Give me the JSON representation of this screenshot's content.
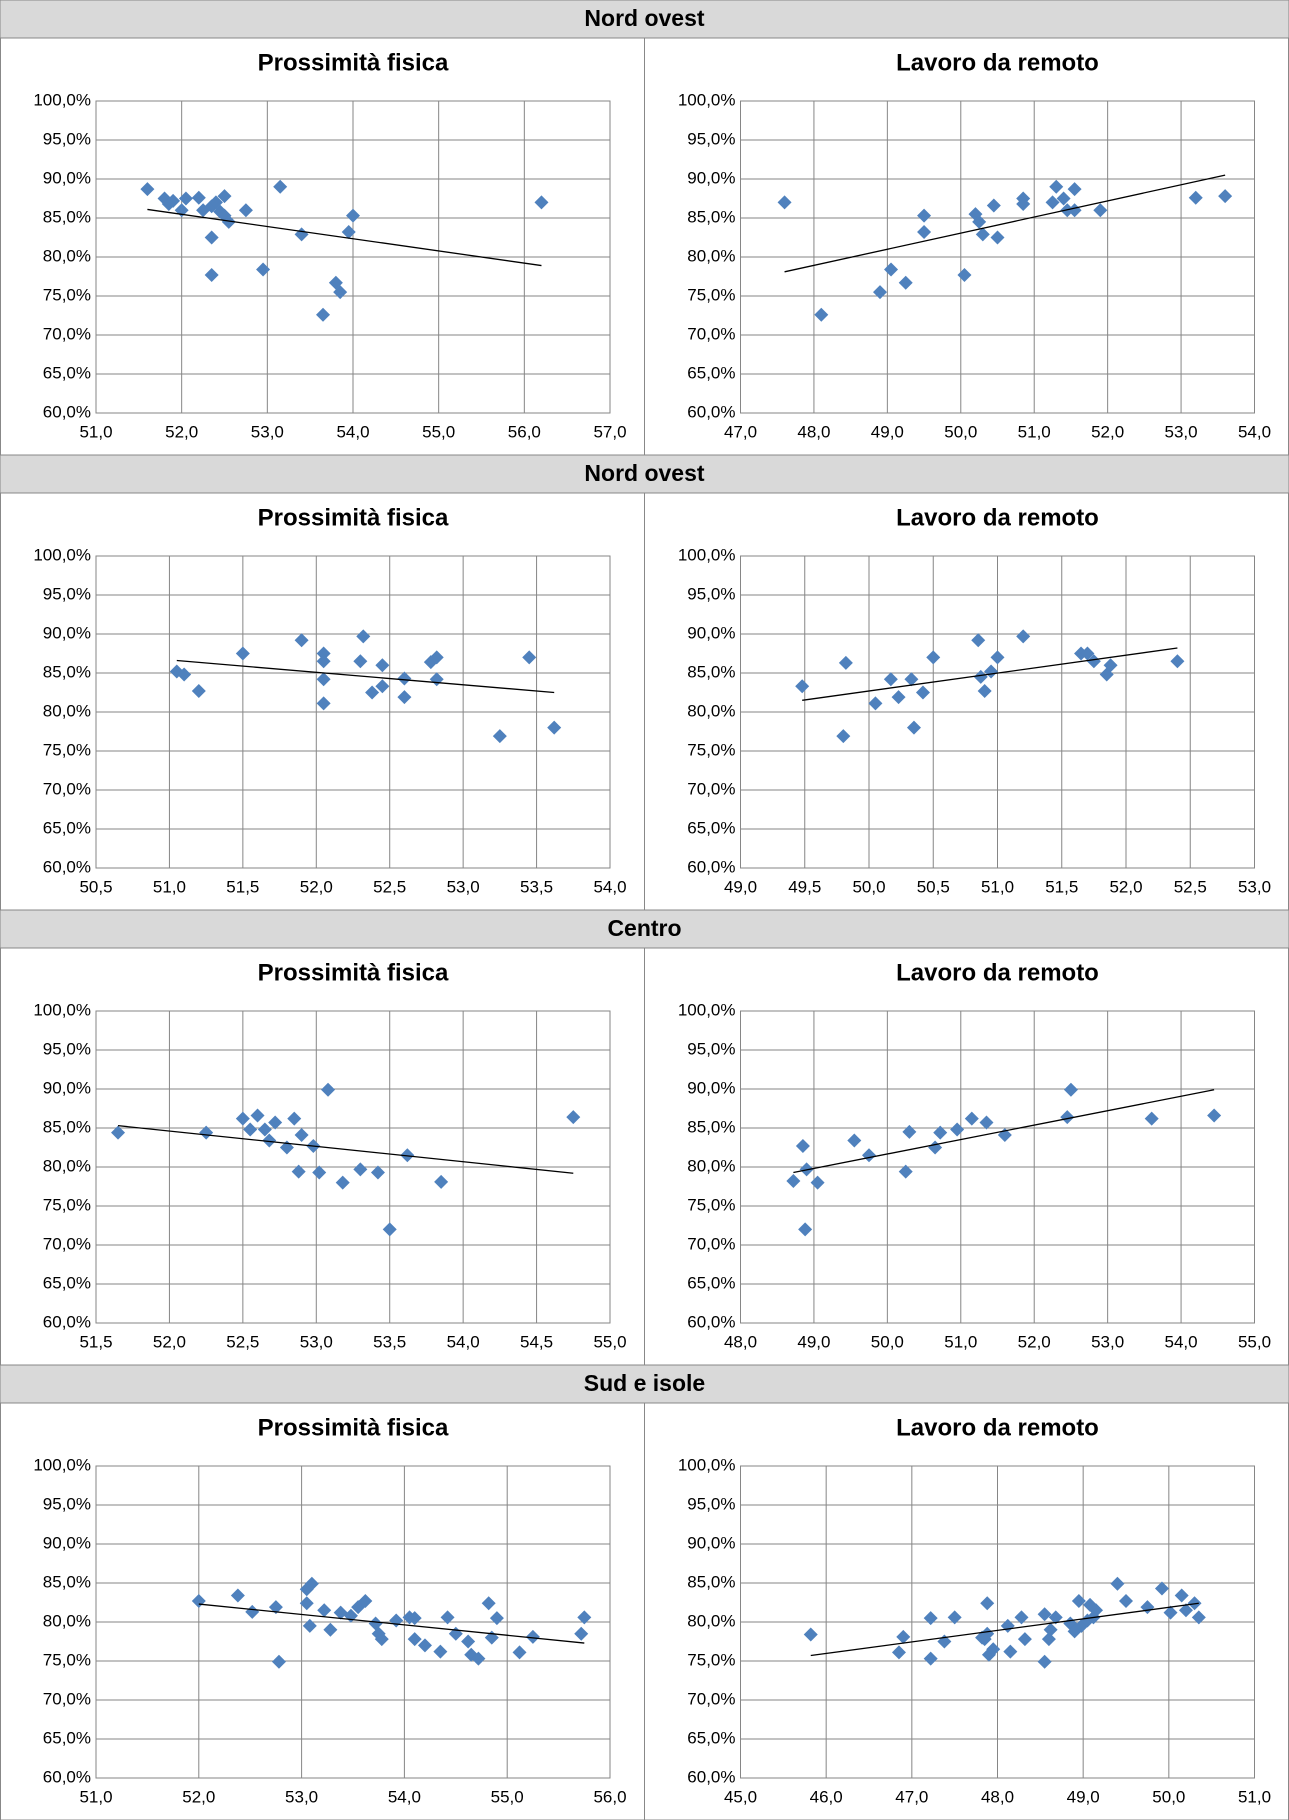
{
  "sections": [
    {
      "header": "Nord ovest"
    },
    {
      "header": "Nord ovest"
    },
    {
      "header": "Centro"
    },
    {
      "header": "Sud e isole"
    }
  ],
  "chart_data": [
    {
      "type": "scatter",
      "title": "Prossimità fisica",
      "color": "#4f81bd",
      "grid": true,
      "x": [
        51.6,
        51.8,
        51.85,
        51.9,
        52.0,
        52.05,
        52.2,
        52.25,
        52.35,
        52.4,
        52.45,
        52.5,
        52.5,
        52.55,
        52.35,
        52.35,
        52.75,
        52.95,
        53.15,
        53.4,
        53.65,
        53.8,
        53.85,
        53.95,
        54.0,
        56.2
      ],
      "y": [
        88.7,
        87.5,
        86.8,
        87.2,
        86.0,
        87.5,
        87.6,
        86.0,
        86.5,
        87.0,
        85.8,
        87.8,
        85.3,
        84.5,
        82.5,
        77.7,
        86.0,
        78.4,
        89.0,
        82.9,
        72.6,
        76.7,
        75.5,
        83.2,
        85.3,
        87.0
      ],
      "trendline": {
        "x": [
          51.6,
          56.2
        ],
        "y": [
          86.1,
          78.9
        ],
        "color": "#000000"
      },
      "xlim": [
        51,
        57
      ],
      "xticks": [
        {
          "value": 51,
          "label": "51,0"
        },
        {
          "value": 52,
          "label": "52,0"
        },
        {
          "value": 53,
          "label": "53,0"
        },
        {
          "value": 54,
          "label": "54,0"
        },
        {
          "value": 55,
          "label": "55,0"
        },
        {
          "value": 56,
          "label": "56,0"
        },
        {
          "value": 57,
          "label": "57,0"
        }
      ],
      "ylim": [
        60,
        100
      ],
      "yticks": [
        {
          "value": 60,
          "label": "60,0%"
        },
        {
          "value": 65,
          "label": "65,0%"
        },
        {
          "value": 70,
          "label": "70,0%"
        },
        {
          "value": 75,
          "label": "75,0%"
        },
        {
          "value": 80,
          "label": "80,0%"
        },
        {
          "value": 85,
          "label": "85,0%"
        },
        {
          "value": 90,
          "label": "90,0%"
        },
        {
          "value": 95,
          "label": "95,0%"
        },
        {
          "value": 100,
          "label": "100,0%"
        }
      ]
    },
    {
      "type": "scatter",
      "title": "Lavoro da remoto",
      "color": "#4f81bd",
      "grid": true,
      "x": [
        47.6,
        48.1,
        48.9,
        49.05,
        49.25,
        49.5,
        49.5,
        50.05,
        50.2,
        50.25,
        50.3,
        50.45,
        50.5,
        50.85,
        50.85,
        51.25,
        51.3,
        51.4,
        51.45,
        51.55,
        51.55,
        51.9,
        53.2,
        53.6
      ],
      "y": [
        87.0,
        72.6,
        75.5,
        78.4,
        76.7,
        83.2,
        85.3,
        77.7,
        85.5,
        84.5,
        82.9,
        86.6,
        82.5,
        86.8,
        87.5,
        87.0,
        89.0,
        87.5,
        86.0,
        86.0,
        88.7,
        86.0,
        87.6,
        87.8
      ],
      "trendline": {
        "x": [
          47.6,
          53.6
        ],
        "y": [
          78.1,
          90.5
        ],
        "color": "#000000"
      },
      "xlim": [
        47,
        54
      ],
      "xticks": [
        {
          "value": 47,
          "label": "47,0"
        },
        {
          "value": 48,
          "label": "48,0"
        },
        {
          "value": 49,
          "label": "49,0"
        },
        {
          "value": 50,
          "label": "50,0"
        },
        {
          "value": 51,
          "label": "51,0"
        },
        {
          "value": 52,
          "label": "52,0"
        },
        {
          "value": 53,
          "label": "53,0"
        },
        {
          "value": 54,
          "label": "54,0"
        }
      ],
      "ylim": [
        60,
        100
      ],
      "yticks": [
        {
          "value": 60,
          "label": "60,0%"
        },
        {
          "value": 65,
          "label": "65,0%"
        },
        {
          "value": 70,
          "label": "70,0%"
        },
        {
          "value": 75,
          "label": "75,0%"
        },
        {
          "value": 80,
          "label": "80,0%"
        },
        {
          "value": 85,
          "label": "85,0%"
        },
        {
          "value": 90,
          "label": "90,0%"
        },
        {
          "value": 95,
          "label": "95,0%"
        },
        {
          "value": 100,
          "label": "100,0%"
        }
      ]
    },
    {
      "type": "scatter",
      "title": "Prossimità fisica",
      "color": "#4f81bd",
      "grid": true,
      "x": [
        51.05,
        51.1,
        51.2,
        51.5,
        51.9,
        52.05,
        52.05,
        52.05,
        52.05,
        52.3,
        52.32,
        52.38,
        52.45,
        52.45,
        52.6,
        52.6,
        52.78,
        52.82,
        52.82,
        53.25,
        53.45,
        53.62
      ],
      "y": [
        85.2,
        84.8,
        82.7,
        87.5,
        89.2,
        87.5,
        86.5,
        84.2,
        81.1,
        86.5,
        89.7,
        82.5,
        83.3,
        86.0,
        84.3,
        81.9,
        86.4,
        87.0,
        84.2,
        76.9,
        87.0,
        78.0
      ],
      "trendline": {
        "x": [
          51.05,
          53.62
        ],
        "y": [
          86.6,
          82.5
        ],
        "color": "#000000"
      },
      "xlim": [
        50.5,
        54
      ],
      "xticks": [
        {
          "value": 50.5,
          "label": "50,5"
        },
        {
          "value": 51,
          "label": "51,0"
        },
        {
          "value": 51.5,
          "label": "51,5"
        },
        {
          "value": 52,
          "label": "52,0"
        },
        {
          "value": 52.5,
          "label": "52,5"
        },
        {
          "value": 53,
          "label": "53,0"
        },
        {
          "value": 53.5,
          "label": "53,5"
        },
        {
          "value": 54,
          "label": "54,0"
        }
      ],
      "ylim": [
        60,
        100
      ],
      "yticks": [
        {
          "value": 60,
          "label": "60,0%"
        },
        {
          "value": 65,
          "label": "65,0%"
        },
        {
          "value": 70,
          "label": "70,0%"
        },
        {
          "value": 75,
          "label": "75,0%"
        },
        {
          "value": 80,
          "label": "80,0%"
        },
        {
          "value": 85,
          "label": "85,0%"
        },
        {
          "value": 90,
          "label": "90,0%"
        },
        {
          "value": 95,
          "label": "95,0%"
        },
        {
          "value": 100,
          "label": "100,0%"
        }
      ]
    },
    {
      "type": "scatter",
      "title": "Lavoro da remoto",
      "color": "#4f81bd",
      "grid": true,
      "x": [
        49.48,
        49.82,
        49.8,
        50.05,
        50.17,
        50.23,
        50.33,
        50.35,
        50.42,
        50.5,
        50.85,
        50.87,
        50.9,
        50.95,
        51.0,
        51.2,
        51.65,
        51.7,
        51.75,
        51.85,
        51.88,
        52.4
      ],
      "y": [
        83.3,
        86.3,
        76.9,
        81.1,
        84.2,
        81.9,
        84.2,
        78.0,
        82.5,
        87.0,
        89.2,
        84.5,
        82.7,
        85.2,
        87.0,
        89.7,
        87.5,
        87.5,
        86.5,
        84.8,
        86.0,
        86.5
      ],
      "trendline": {
        "x": [
          49.48,
          52.4
        ],
        "y": [
          81.5,
          88.2
        ],
        "color": "#000000"
      },
      "xlim": [
        49,
        53
      ],
      "xticks": [
        {
          "value": 49,
          "label": "49,0"
        },
        {
          "value": 49.5,
          "label": "49,5"
        },
        {
          "value": 50,
          "label": "50,0"
        },
        {
          "value": 50.5,
          "label": "50,5"
        },
        {
          "value": 51,
          "label": "51,0"
        },
        {
          "value": 51.5,
          "label": "51,5"
        },
        {
          "value": 52,
          "label": "52,0"
        },
        {
          "value": 52.5,
          "label": "52,5"
        },
        {
          "value": 53,
          "label": "53,0"
        }
      ],
      "ylim": [
        60,
        100
      ],
      "yticks": [
        {
          "value": 60,
          "label": "60,0%"
        },
        {
          "value": 65,
          "label": "65,0%"
        },
        {
          "value": 70,
          "label": "70,0%"
        },
        {
          "value": 75,
          "label": "75,0%"
        },
        {
          "value": 80,
          "label": "80,0%"
        },
        {
          "value": 85,
          "label": "85,0%"
        },
        {
          "value": 90,
          "label": "90,0%"
        },
        {
          "value": 95,
          "label": "95,0%"
        },
        {
          "value": 100,
          "label": "100,0%"
        }
      ]
    },
    {
      "type": "scatter",
      "title": "Prossimità fisica",
      "color": "#4f81bd",
      "grid": true,
      "x": [
        51.65,
        52.25,
        52.5,
        52.55,
        52.6,
        52.65,
        52.68,
        52.72,
        52.8,
        52.85,
        52.9,
        52.88,
        52.98,
        53.02,
        53.08,
        53.18,
        53.3,
        53.42,
        53.5,
        53.62,
        53.85,
        54.75
      ],
      "y": [
        84.4,
        84.4,
        86.2,
        84.8,
        86.6,
        84.8,
        83.4,
        85.7,
        82.5,
        86.2,
        84.1,
        79.4,
        82.7,
        79.3,
        89.9,
        78.0,
        79.7,
        79.3,
        72.0,
        81.5,
        78.1,
        86.4
      ],
      "trendline": {
        "x": [
          51.65,
          54.75
        ],
        "y": [
          85.3,
          79.2
        ],
        "color": "#000000"
      },
      "xlim": [
        51.5,
        55
      ],
      "xticks": [
        {
          "value": 51.5,
          "label": "51,5"
        },
        {
          "value": 52,
          "label": "52,0"
        },
        {
          "value": 52.5,
          "label": "52,5"
        },
        {
          "value": 53,
          "label": "53,0"
        },
        {
          "value": 53.5,
          "label": "53,5"
        },
        {
          "value": 54,
          "label": "54,0"
        },
        {
          "value": 54.5,
          "label": "54,5"
        },
        {
          "value": 55,
          "label": "55,0"
        }
      ],
      "ylim": [
        60,
        100
      ],
      "yticks": [
        {
          "value": 60,
          "label": "60,0%"
        },
        {
          "value": 65,
          "label": "65,0%"
        },
        {
          "value": 70,
          "label": "70,0%"
        },
        {
          "value": 75,
          "label": "75,0%"
        },
        {
          "value": 80,
          "label": "80,0%"
        },
        {
          "value": 85,
          "label": "85,0%"
        },
        {
          "value": 90,
          "label": "90,0%"
        },
        {
          "value": 95,
          "label": "95,0%"
        },
        {
          "value": 100,
          "label": "100,0%"
        }
      ]
    },
    {
      "type": "scatter",
      "title": "Lavoro da remoto",
      "color": "#4f81bd",
      "grid": true,
      "x": [
        48.72,
        48.85,
        48.88,
        48.9,
        49.05,
        49.55,
        49.75,
        50.25,
        50.3,
        50.65,
        50.72,
        50.95,
        51.15,
        51.35,
        51.6,
        52.45,
        52.5,
        53.6,
        54.45
      ],
      "y": [
        78.2,
        82.7,
        72.0,
        79.7,
        78.0,
        83.4,
        81.5,
        79.4,
        84.5,
        82.5,
        84.4,
        84.8,
        86.2,
        85.7,
        84.1,
        86.4,
        89.9,
        86.2,
        86.6
      ],
      "trendline": {
        "x": [
          48.72,
          54.45
        ],
        "y": [
          79.3,
          89.9
        ],
        "color": "#000000"
      },
      "xlim": [
        48,
        55
      ],
      "xticks": [
        {
          "value": 48,
          "label": "48,0"
        },
        {
          "value": 49,
          "label": "49,0"
        },
        {
          "value": 50,
          "label": "50,0"
        },
        {
          "value": 51,
          "label": "51,0"
        },
        {
          "value": 52,
          "label": "52,0"
        },
        {
          "value": 53,
          "label": "53,0"
        },
        {
          "value": 54,
          "label": "54,0"
        },
        {
          "value": 55,
          "label": "55,0"
        }
      ],
      "ylim": [
        60,
        100
      ],
      "yticks": [
        {
          "value": 60,
          "label": "60,0%"
        },
        {
          "value": 65,
          "label": "65,0%"
        },
        {
          "value": 70,
          "label": "70,0%"
        },
        {
          "value": 75,
          "label": "75,0%"
        },
        {
          "value": 80,
          "label": "80,0%"
        },
        {
          "value": 85,
          "label": "85,0%"
        },
        {
          "value": 90,
          "label": "90,0%"
        },
        {
          "value": 95,
          "label": "95,0%"
        },
        {
          "value": 100,
          "label": "100,0%"
        }
      ]
    },
    {
      "type": "scatter",
      "title": "Prossimità fisica",
      "color": "#4f81bd",
      "grid": true,
      "x": [
        52.0,
        52.38,
        52.52,
        52.75,
        52.78,
        53.05,
        53.05,
        53.1,
        53.08,
        53.22,
        53.28,
        53.38,
        53.48,
        53.55,
        53.62,
        53.72,
        53.75,
        53.78,
        53.92,
        54.05,
        54.1,
        54.1,
        54.2,
        54.35,
        54.42,
        54.5,
        54.62,
        54.65,
        54.72,
        54.82,
        54.85,
        54.9,
        55.12,
        55.25,
        55.72,
        55.75
      ],
      "y": [
        82.7,
        83.4,
        81.3,
        81.9,
        74.9,
        82.4,
        84.2,
        84.9,
        79.5,
        81.5,
        79.0,
        81.2,
        80.8,
        81.9,
        82.7,
        79.8,
        78.5,
        77.8,
        80.2,
        80.6,
        80.5,
        77.8,
        77.0,
        76.2,
        80.6,
        78.5,
        77.5,
        75.8,
        75.3,
        82.4,
        78.0,
        80.5,
        76.1,
        78.1,
        78.5,
        80.6
      ],
      "trendline": {
        "x": [
          52.0,
          55.75
        ],
        "y": [
          82.3,
          77.3
        ],
        "color": "#000000"
      },
      "xlim": [
        51,
        56
      ],
      "xticks": [
        {
          "value": 51,
          "label": "51,0"
        },
        {
          "value": 52,
          "label": "52,0"
        },
        {
          "value": 53,
          "label": "53,0"
        },
        {
          "value": 54,
          "label": "54,0"
        },
        {
          "value": 55,
          "label": "55,0"
        },
        {
          "value": 56,
          "label": "56,0"
        }
      ],
      "ylim": [
        60,
        100
      ],
      "yticks": [
        {
          "value": 60,
          "label": "60,0%"
        },
        {
          "value": 65,
          "label": "65,0%"
        },
        {
          "value": 70,
          "label": "70,0%"
        },
        {
          "value": 75,
          "label": "75,0%"
        },
        {
          "value": 80,
          "label": "80,0%"
        },
        {
          "value": 85,
          "label": "85,0%"
        },
        {
          "value": 90,
          "label": "90,0%"
        },
        {
          "value": 95,
          "label": "95,0%"
        },
        {
          "value": 100,
          "label": "100,0%"
        }
      ]
    },
    {
      "type": "scatter",
      "title": "Lavoro da remoto",
      "color": "#4f81bd",
      "grid": true,
      "x": [
        45.82,
        46.85,
        46.9,
        47.22,
        47.22,
        47.38,
        47.5,
        47.82,
        47.85,
        47.88,
        47.9,
        47.95,
        47.88,
        48.12,
        48.15,
        48.28,
        48.32,
        48.55,
        48.55,
        48.6,
        48.62,
        48.68,
        48.85,
        48.9,
        48.95,
        48.98,
        49.05,
        49.08,
        49.12,
        49.15,
        49.4,
        49.5,
        49.75,
        49.92,
        50.02,
        50.15,
        50.2,
        50.3,
        50.35
      ],
      "y": [
        78.4,
        76.1,
        78.1,
        75.3,
        80.5,
        77.5,
        80.6,
        78.0,
        77.8,
        82.4,
        75.8,
        76.5,
        78.5,
        79.5,
        76.2,
        80.6,
        77.8,
        81.0,
        74.9,
        77.8,
        79.0,
        80.6,
        79.8,
        78.8,
        82.7,
        79.5,
        80.2,
        82.2,
        80.6,
        81.5,
        84.9,
        82.7,
        81.9,
        84.3,
        81.2,
        83.4,
        81.5,
        82.4,
        80.6
      ],
      "trendline": {
        "x": [
          45.82,
          50.35
        ],
        "y": [
          75.7,
          82.4
        ],
        "color": "#000000"
      },
      "xlim": [
        45,
        51
      ],
      "xticks": [
        {
          "value": 45,
          "label": "45,0"
        },
        {
          "value": 46,
          "label": "46,0"
        },
        {
          "value": 47,
          "label": "47,0"
        },
        {
          "value": 48,
          "label": "48,0"
        },
        {
          "value": 49,
          "label": "49,0"
        },
        {
          "value": 50,
          "label": "50,0"
        },
        {
          "value": 51,
          "label": "51,0"
        }
      ],
      "ylim": [
        60,
        100
      ],
      "yticks": [
        {
          "value": 60,
          "label": "60,0%"
        },
        {
          "value": 65,
          "label": "65,0%"
        },
        {
          "value": 70,
          "label": "70,0%"
        },
        {
          "value": 75,
          "label": "75,0%"
        },
        {
          "value": 80,
          "label": "80,0%"
        },
        {
          "value": 85,
          "label": "85,0%"
        },
        {
          "value": 90,
          "label": "90,0%"
        },
        {
          "value": 95,
          "label": "95,0%"
        },
        {
          "value": 100,
          "label": "100,0%"
        }
      ]
    }
  ]
}
